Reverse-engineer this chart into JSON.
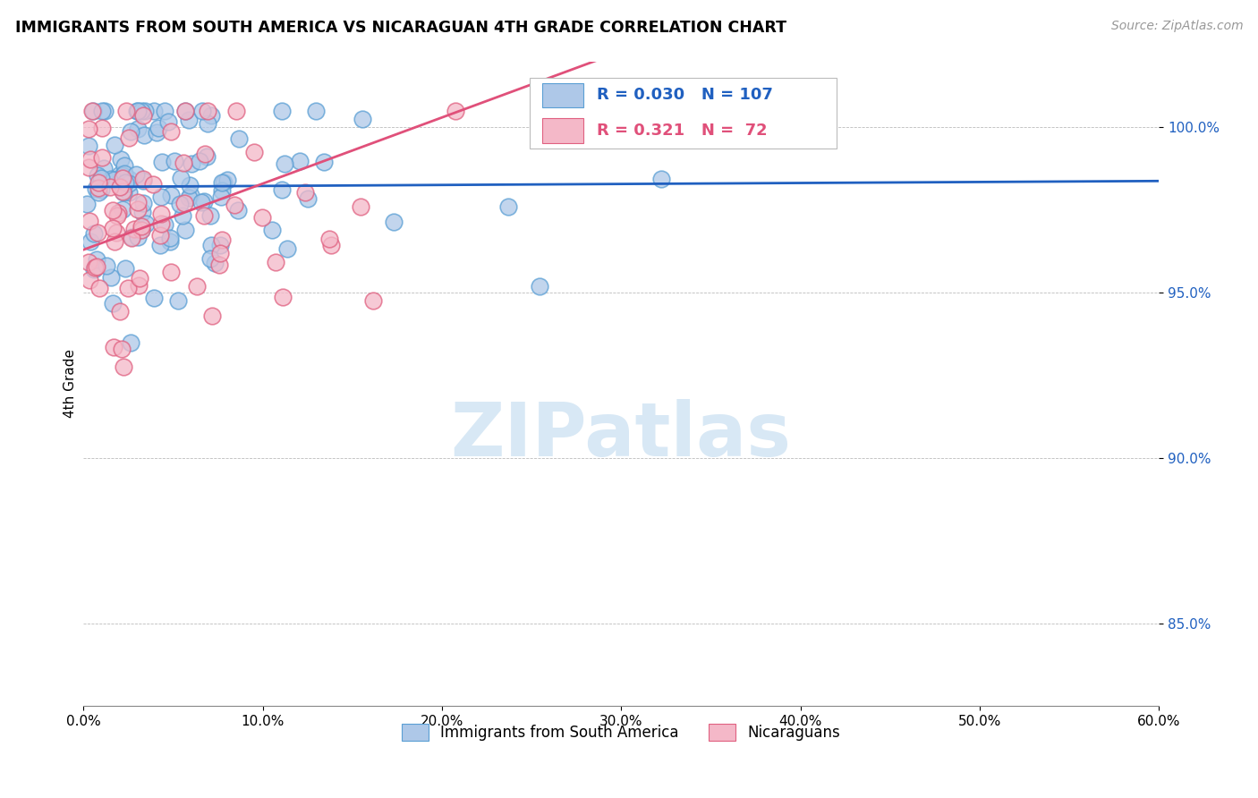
{
  "title": "IMMIGRANTS FROM SOUTH AMERICA VS NICARAGUAN 4TH GRADE CORRELATION CHART",
  "source": "Source: ZipAtlas.com",
  "ylabel": "4th Grade",
  "y_ticks": [
    0.85,
    0.9,
    0.95,
    1.0
  ],
  "y_tick_labels": [
    "85.0%",
    "90.0%",
    "95.0%",
    "100.0%"
  ],
  "x_range": [
    0.0,
    0.6
  ],
  "y_range": [
    0.825,
    1.02
  ],
  "legend_label_blue": "Immigrants from South America",
  "legend_label_pink": "Nicaraguans",
  "r_blue": "0.030",
  "n_blue": "107",
  "r_pink": "0.321",
  "n_pink": "72",
  "blue_color": "#aec8e8",
  "pink_color": "#f4b8c8",
  "blue_edge": "#5a9fd4",
  "pink_edge": "#e06080",
  "line_blue": "#2060c0",
  "line_pink": "#e0507a",
  "watermark_color": "#d8e8f5",
  "watermark": "ZIPatlas"
}
